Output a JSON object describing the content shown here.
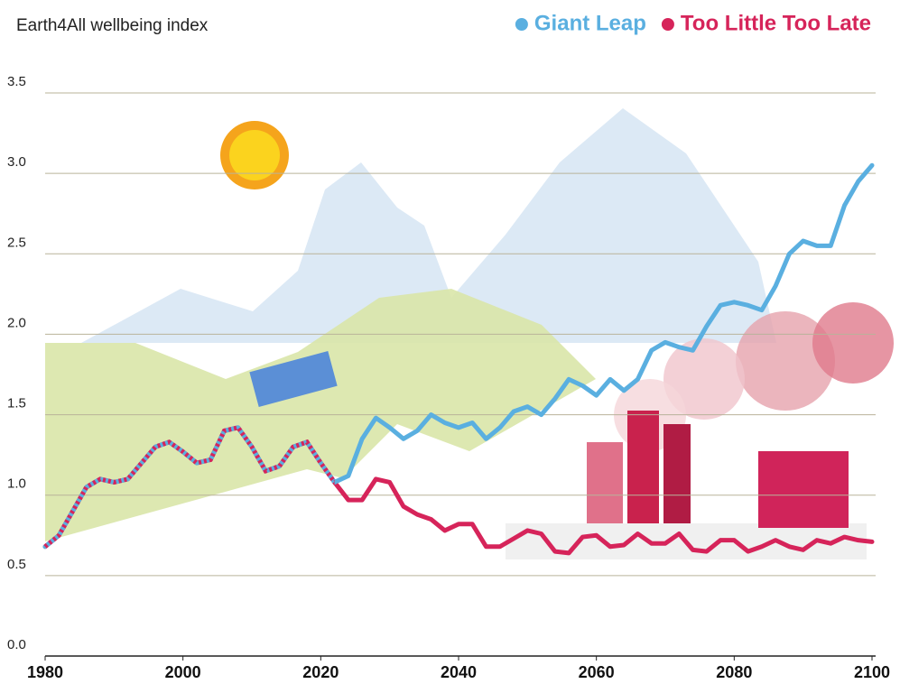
{
  "chart_data": {
    "type": "line",
    "title": "Earth4All wellbeing index",
    "x": [
      1980,
      1982,
      1984,
      1986,
      1988,
      1990,
      1992,
      1994,
      1996,
      1998,
      2000,
      2002,
      2004,
      2006,
      2008,
      2010,
      2012,
      2014,
      2016,
      2018,
      2020,
      2022,
      2024,
      2026,
      2028,
      2030,
      2032,
      2034,
      2036,
      2038,
      2040,
      2042,
      2044,
      2046,
      2048,
      2050,
      2052,
      2054,
      2056,
      2058,
      2060,
      2062,
      2064,
      2066,
      2068,
      2070,
      2072,
      2074,
      2076,
      2078,
      2080,
      2082,
      2084,
      2086,
      2088,
      2090,
      2092,
      2094,
      2096,
      2098,
      2100
    ],
    "series": [
      {
        "name": "Giant Leap",
        "color": "#5aafe0",
        "values": [
          0.68,
          0.75,
          0.9,
          1.05,
          1.1,
          1.08,
          1.1,
          1.2,
          1.3,
          1.33,
          1.27,
          1.2,
          1.22,
          1.4,
          1.42,
          1.3,
          1.15,
          1.18,
          1.3,
          1.33,
          1.2,
          1.08,
          1.12,
          1.35,
          1.48,
          1.42,
          1.35,
          1.4,
          1.5,
          1.45,
          1.42,
          1.45,
          1.35,
          1.42,
          1.52,
          1.55,
          1.5,
          1.6,
          1.72,
          1.68,
          1.62,
          1.72,
          1.65,
          1.72,
          1.9,
          1.95,
          1.92,
          1.9,
          2.05,
          2.18,
          2.2,
          2.18,
          2.15,
          2.3,
          2.5,
          2.58,
          2.55,
          2.55,
          2.8,
          2.95,
          3.05
        ]
      },
      {
        "name": "Too Little Too Late",
        "color": "#d6245a",
        "values": [
          0.68,
          0.75,
          0.9,
          1.05,
          1.1,
          1.08,
          1.1,
          1.2,
          1.3,
          1.33,
          1.27,
          1.2,
          1.22,
          1.4,
          1.42,
          1.3,
          1.15,
          1.18,
          1.3,
          1.33,
          1.2,
          1.08,
          0.97,
          0.97,
          1.1,
          1.08,
          0.93,
          0.88,
          0.85,
          0.78,
          0.82,
          0.82,
          0.68,
          0.68,
          0.73,
          0.78,
          0.76,
          0.65,
          0.64,
          0.74,
          0.75,
          0.68,
          0.69,
          0.76,
          0.7,
          0.7,
          0.76,
          0.66,
          0.65,
          0.72,
          0.72,
          0.65,
          0.68,
          0.72,
          0.68,
          0.66,
          0.72,
          0.7,
          0.74,
          0.72,
          0.71
        ]
      }
    ],
    "xlim": [
      1980,
      2100
    ],
    "xticks": [
      1980,
      2000,
      2020,
      2040,
      2060,
      2080,
      2100
    ],
    "ylim": [
      0,
      3.5
    ],
    "yticks": [
      {
        "value": 0,
        "label": "0.0"
      },
      0.5,
      {
        "value": 1,
        "label": "1.0"
      },
      1.5,
      {
        "value": 2,
        "label": "2.0"
      },
      2.5,
      {
        "value": 3,
        "label": "3.0"
      },
      3.5
    ],
    "grid": true,
    "legend": "top-right"
  }
}
